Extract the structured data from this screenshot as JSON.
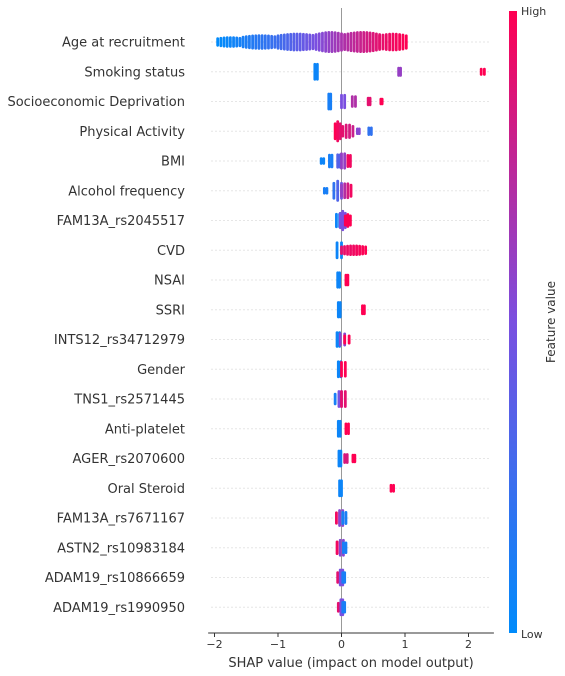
{
  "chart_data": {
    "type": "scatter",
    "subtype": "shap-beeswarm",
    "xlabel": "SHAP value (impact on model output)",
    "xlim": [
      -2.1,
      2.4
    ],
    "xticks": [
      -2,
      -1,
      0,
      1,
      2
    ],
    "xtick_labels": [
      "−2",
      "−1",
      "0",
      "1",
      "2"
    ],
    "grid": "horizontal dotted",
    "colorbar": {
      "title": "Feature value",
      "high_label": "High",
      "low_label": "Low",
      "low_color": "#008bfb",
      "high_color": "#ff0052"
    },
    "features": [
      {
        "name": "Age at recruitment",
        "clusters": [
          {
            "range": [
              -1.95,
              -1.55
            ],
            "v": [
              0.0,
              0.1
            ],
            "w": 0.35
          },
          {
            "range": [
              -1.55,
              -1.0
            ],
            "v": [
              0.1,
              0.25
            ],
            "w": 0.6
          },
          {
            "range": [
              -1.0,
              -0.4
            ],
            "v": [
              0.25,
              0.5
            ],
            "w": 0.8
          },
          {
            "range": [
              -0.4,
              0.05
            ],
            "v": [
              0.5,
              0.7
            ],
            "w": 1.0
          },
          {
            "range": [
              0.05,
              0.6
            ],
            "v": [
              0.7,
              0.9
            ],
            "w": 1.0
          },
          {
            "range": [
              0.6,
              1.02
            ],
            "v": [
              0.9,
              1.0
            ],
            "w": 0.8
          }
        ]
      },
      {
        "name": "Smoking status",
        "clusters": [
          {
            "range": [
              -0.42,
              -0.38
            ],
            "v": [
              0.05,
              0.05
            ],
            "w": 1.0
          },
          {
            "range": [
              0.9,
              0.93
            ],
            "v": [
              0.6,
              0.6
            ],
            "w": 0.4
          },
          {
            "range": [
              2.2,
              2.25
            ],
            "v": [
              1.0,
              1.0
            ],
            "w": 0.25
          }
        ]
      },
      {
        "name": "Socioeconomic Deprivation",
        "clusters": [
          {
            "range": [
              -0.2,
              -0.17
            ],
            "v": [
              0.1,
              0.1
            ],
            "w": 1.0
          },
          {
            "range": [
              0.0,
              0.05
            ],
            "v": [
              0.5,
              0.5
            ],
            "w": 0.8
          },
          {
            "range": [
              0.17,
              0.22
            ],
            "v": [
              0.7,
              0.7
            ],
            "w": 0.6
          },
          {
            "range": [
              0.42,
              0.45
            ],
            "v": [
              0.9,
              0.9
            ],
            "w": 0.35
          },
          {
            "range": [
              0.62,
              0.64
            ],
            "v": [
              1.0,
              1.0
            ],
            "w": 0.2
          }
        ]
      },
      {
        "name": "Physical Activity",
        "clusters": [
          {
            "range": [
              -0.1,
              -0.02
            ],
            "v": [
              1.0,
              0.9
            ],
            "w": 1.0
          },
          {
            "range": [
              0.02,
              0.18
            ],
            "v": [
              0.9,
              0.8
            ],
            "w": 0.6
          },
          {
            "range": [
              0.25,
              0.28
            ],
            "v": [
              0.55,
              0.55
            ],
            "w": 0.2
          },
          {
            "range": [
              0.43,
              0.47
            ],
            "v": [
              0.2,
              0.2
            ],
            "w": 0.35
          }
        ]
      },
      {
        "name": "BMI",
        "clusters": [
          {
            "range": [
              -0.32,
              -0.28
            ],
            "v": [
              0.05,
              0.05
            ],
            "w": 0.2
          },
          {
            "range": [
              -0.19,
              -0.15
            ],
            "v": [
              0.1,
              0.1
            ],
            "w": 0.75
          },
          {
            "range": [
              -0.06,
              -0.02
            ],
            "v": [
              0.35,
              0.35
            ],
            "w": 0.8
          },
          {
            "range": [
              0.0,
              0.05
            ],
            "v": [
              0.6,
              0.6
            ],
            "w": 0.95
          },
          {
            "range": [
              0.1,
              0.14
            ],
            "v": [
              0.95,
              0.95
            ],
            "w": 0.7
          }
        ]
      },
      {
        "name": "Alcohol frequency",
        "clusters": [
          {
            "range": [
              -0.27,
              -0.23
            ],
            "v": [
              0.1,
              0.1
            ],
            "w": 0.2
          },
          {
            "range": [
              -0.12,
              0.0
            ],
            "v": [
              0.2,
              0.45
            ],
            "w": 1.0
          },
          {
            "range": [
              0.0,
              0.15
            ],
            "v": [
              0.6,
              0.95
            ],
            "w": 0.7
          }
        ]
      },
      {
        "name": "FAM13A_rs2045517",
        "clusters": [
          {
            "range": [
              -0.08,
              -0.03
            ],
            "v": [
              0.05,
              0.05
            ],
            "w": 0.8
          },
          {
            "range": [
              -0.02,
              0.06
            ],
            "v": [
              0.5,
              0.5
            ],
            "w": 0.95
          },
          {
            "range": [
              0.06,
              0.14
            ],
            "v": [
              1.0,
              1.0
            ],
            "w": 0.55
          }
        ]
      },
      {
        "name": "CVD",
        "clusters": [
          {
            "range": [
              -0.07,
              0.0
            ],
            "v": [
              0.05,
              0.05
            ],
            "w": 1.0
          },
          {
            "range": [
              0.0,
              0.38
            ],
            "v": [
              0.9,
              1.0
            ],
            "w": 0.35
          }
        ]
      },
      {
        "name": "NSAI",
        "clusters": [
          {
            "range": [
              -0.06,
              -0.03
            ],
            "v": [
              0.05,
              0.05
            ],
            "w": 0.95
          },
          {
            "range": [
              0.07,
              0.1
            ],
            "v": [
              1.0,
              1.0
            ],
            "w": 0.6
          }
        ]
      },
      {
        "name": "SSRI",
        "clusters": [
          {
            "range": [
              -0.05,
              -0.02
            ],
            "v": [
              0.05,
              0.05
            ],
            "w": 0.95
          },
          {
            "range": [
              0.33,
              0.36
            ],
            "v": [
              1.0,
              1.0
            ],
            "w": 0.45
          }
        ]
      },
      {
        "name": "INTS12_rs34712979",
        "clusters": [
          {
            "range": [
              -0.07,
              -0.03
            ],
            "v": [
              0.05,
              0.05
            ],
            "w": 0.9
          },
          {
            "range": [
              -0.02,
              0.05
            ],
            "v": [
              0.55,
              0.55
            ],
            "w": 0.7
          },
          {
            "range": [
              0.05,
              0.12
            ],
            "v": [
              1.0,
              1.0
            ],
            "w": 0.4
          }
        ]
      },
      {
        "name": "Gender",
        "clusters": [
          {
            "range": [
              -0.05,
              -0.01
            ],
            "v": [
              0.05,
              0.05
            ],
            "w": 1.0
          },
          {
            "range": [
              0.0,
              0.06
            ],
            "v": [
              1.0,
              1.0
            ],
            "w": 0.9
          }
        ]
      },
      {
        "name": "TNS1_rs2571445",
        "clusters": [
          {
            "range": [
              -0.1,
              -0.04
            ],
            "v": [
              0.1,
              0.1
            ],
            "w": 0.6
          },
          {
            "range": [
              -0.04,
              0.0
            ],
            "v": [
              0.5,
              0.5
            ],
            "w": 1.0
          },
          {
            "range": [
              0.0,
              0.06
            ],
            "v": [
              0.9,
              0.9
            ],
            "w": 1.0
          }
        ]
      },
      {
        "name": "Anti-platelet",
        "clusters": [
          {
            "range": [
              -0.05,
              -0.02
            ],
            "v": [
              0.05,
              0.05
            ],
            "w": 1.0
          },
          {
            "range": [
              0.07,
              0.11
            ],
            "v": [
              1.0,
              1.0
            ],
            "w": 0.6
          }
        ]
      },
      {
        "name": "AGER_rs2070600",
        "clusters": [
          {
            "range": [
              -0.04,
              -0.01
            ],
            "v": [
              0.05,
              0.05
            ],
            "w": 1.0
          },
          {
            "range": [
              0.05,
              0.09
            ],
            "v": [
              0.85,
              0.85
            ],
            "w": 0.45
          },
          {
            "range": [
              0.18,
              0.21
            ],
            "v": [
              1.0,
              1.0
            ],
            "w": 0.35
          }
        ]
      },
      {
        "name": "Oral Steroid",
        "clusters": [
          {
            "range": [
              -0.03,
              0.0
            ],
            "v": [
              0.05,
              0.05
            ],
            "w": 1.0
          },
          {
            "range": [
              0.78,
              0.82
            ],
            "v": [
              1.0,
              1.0
            ],
            "w": 0.3
          }
        ]
      },
      {
        "name": "FAM13A_rs7671167",
        "clusters": [
          {
            "range": [
              -0.08,
              -0.03
            ],
            "v": [
              0.95,
              0.95
            ],
            "w": 0.65
          },
          {
            "range": [
              -0.03,
              0.02
            ],
            "v": [
              0.55,
              0.55
            ],
            "w": 1.0
          },
          {
            "range": [
              0.02,
              0.07
            ],
            "v": [
              0.1,
              0.1
            ],
            "w": 0.7
          }
        ]
      },
      {
        "name": "ASTN2_rs10983184",
        "clusters": [
          {
            "range": [
              -0.07,
              -0.02
            ],
            "v": [
              0.95,
              0.95
            ],
            "w": 0.75
          },
          {
            "range": [
              -0.02,
              0.03
            ],
            "v": [
              0.55,
              0.55
            ],
            "w": 1.0
          },
          {
            "range": [
              0.03,
              0.07
            ],
            "v": [
              0.1,
              0.1
            ],
            "w": 0.6
          }
        ]
      },
      {
        "name": "ADAM19_rs10866659",
        "clusters": [
          {
            "range": [
              -0.06,
              -0.02
            ],
            "v": [
              0.9,
              0.9
            ],
            "w": 0.6
          },
          {
            "range": [
              -0.02,
              0.02
            ],
            "v": [
              0.5,
              0.5
            ],
            "w": 1.0
          },
          {
            "range": [
              0.02,
              0.05
            ],
            "v": [
              0.1,
              0.1
            ],
            "w": 0.6
          }
        ]
      },
      {
        "name": "ADAM19_rs1990950",
        "clusters": [
          {
            "range": [
              -0.05,
              -0.01
            ],
            "v": [
              0.9,
              0.9
            ],
            "w": 0.45
          },
          {
            "range": [
              -0.01,
              0.02
            ],
            "v": [
              0.5,
              0.5
            ],
            "w": 1.0
          },
          {
            "range": [
              0.02,
              0.05
            ],
            "v": [
              0.1,
              0.1
            ],
            "w": 0.6
          }
        ]
      }
    ]
  }
}
